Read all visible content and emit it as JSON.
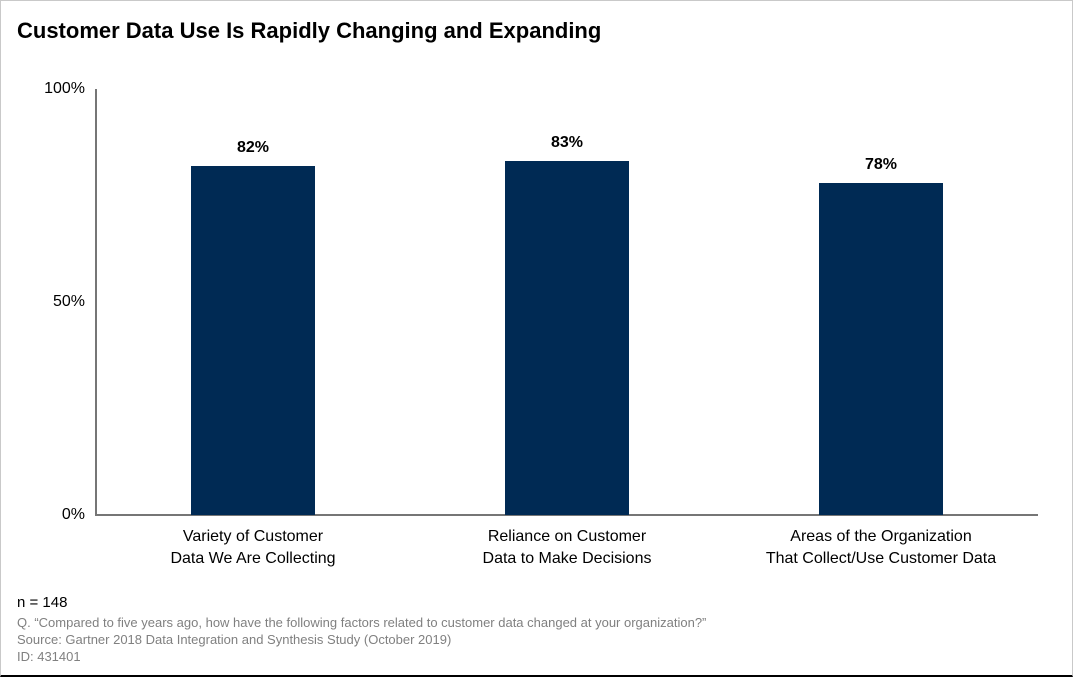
{
  "title": "Customer Data Use Is Rapidly Changing and Expanding",
  "chart_data": {
    "type": "bar",
    "title": "Customer Data Use Is Rapidly Changing and Expanding",
    "categories": [
      "Variety of Customer\nData We Are Collecting",
      "Reliance on Customer\nData to Make Decisions",
      "Areas of the Organization\nThat Collect/Use Customer Data"
    ],
    "values": [
      82,
      83,
      78
    ],
    "value_labels": [
      "82%",
      "83%",
      "78%"
    ],
    "xlabel": "",
    "ylabel": "",
    "ylim": [
      0,
      100
    ],
    "yticks": [
      {
        "label": "100%",
        "value": 100
      },
      {
        "label": "50%",
        "value": 50
      },
      {
        "label": "0%",
        "value": 0
      }
    ],
    "grid": false,
    "legend": "none",
    "bar_color": "#002a54",
    "axis_color": "#767676"
  },
  "footer": {
    "sample_size": "n = 148",
    "question": "Q. “Compared to five years ago, how have the following factors related to customer data changed at your organization?”",
    "source": "Source: Gartner 2018 Data Integration and Synthesis Study (October 2019)",
    "id": "ID: 431401"
  }
}
